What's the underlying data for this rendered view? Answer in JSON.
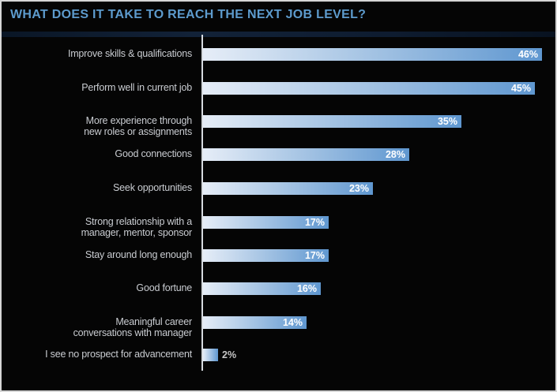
{
  "title": "WHAT DOES IT TAKE TO REACH THE NEXT JOB LEVEL?",
  "colors": {
    "background": "#050505",
    "title_text": "#5d9bcd",
    "category_text": "#c9ccd1",
    "value_text": "#ffffff",
    "axis_line": "#d7dbe0",
    "bar_gradient_start": "#e6edf7",
    "bar_gradient_end": "#5f97d0",
    "title_underline": "#122238",
    "frame_border": "#d6d6d6"
  },
  "chart_data": {
    "type": "bar",
    "orientation": "horizontal",
    "title": "WHAT DOES IT TAKE TO REACH THE NEXT JOB LEVEL?",
    "xlabel": "",
    "ylabel": "",
    "xlim": [
      0,
      46
    ],
    "grid": false,
    "legend": false,
    "value_format": "percent",
    "categories": [
      "Improve skills & qualifications",
      "Perform well in current job",
      "More experience through new roles or assignments",
      "Good connections",
      "Seek opportunities",
      "Strong relationship with a manager, mentor, sponsor",
      "Stay around long enough",
      "Good fortune",
      "Meaningful career conversations with manager",
      "I see no prospect for advancement"
    ],
    "values": [
      46,
      45,
      35,
      28,
      23,
      17,
      17,
      16,
      14,
      2
    ],
    "items": [
      {
        "label_lines": [
          "Improve skills & qualifications"
        ],
        "value": 46,
        "value_label": "46%"
      },
      {
        "label_lines": [
          "Perform well in current job"
        ],
        "value": 45,
        "value_label": "45%"
      },
      {
        "label_lines": [
          "More experience through",
          "new roles or assignments"
        ],
        "value": 35,
        "value_label": "35%"
      },
      {
        "label_lines": [
          "Good connections"
        ],
        "value": 28,
        "value_label": "28%"
      },
      {
        "label_lines": [
          "Seek opportunities"
        ],
        "value": 23,
        "value_label": "23%"
      },
      {
        "label_lines": [
          "Strong relationship with a",
          "manager, mentor, sponsor"
        ],
        "value": 17,
        "value_label": "17%"
      },
      {
        "label_lines": [
          "Stay around long enough"
        ],
        "value": 17,
        "value_label": "17%"
      },
      {
        "label_lines": [
          "Good fortune"
        ],
        "value": 16,
        "value_label": "16%"
      },
      {
        "label_lines": [
          "Meaningful career",
          "conversations with manager"
        ],
        "value": 14,
        "value_label": "14%"
      },
      {
        "label_lines": [
          "I see no prospect for advancement"
        ],
        "value": 2,
        "value_label": "2%"
      }
    ]
  }
}
